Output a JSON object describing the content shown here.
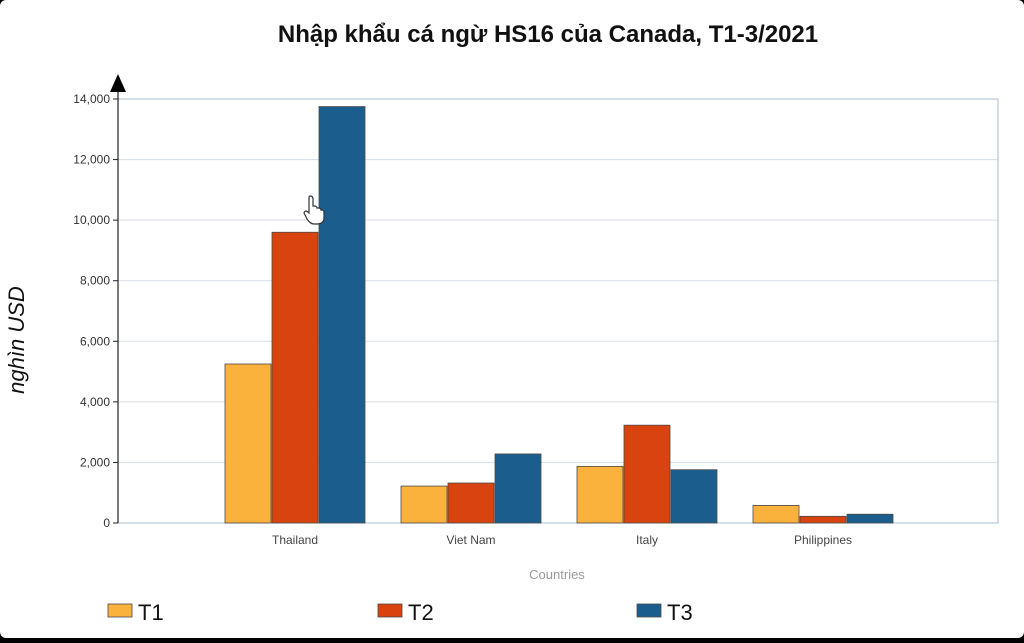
{
  "chart_data": {
    "type": "bar",
    "title": "Nhập khẩu cá ngừ HS16 của Canada, T1-3/2021",
    "ylabel": "nghìn USD",
    "xlabel": "Countries",
    "categories": [
      "Thailand",
      "Viet Nam",
      "Italy",
      "Philippines"
    ],
    "series": [
      {
        "name": "T1",
        "color": "#fbb23c",
        "values": [
          5250,
          1220,
          1870,
          580
        ]
      },
      {
        "name": "T2",
        "color": "#d9430f",
        "values": [
          9600,
          1320,
          3230,
          220
        ]
      },
      {
        "name": "T3",
        "color": "#1b5e8e",
        "values": [
          13750,
          2280,
          1760,
          290
        ]
      }
    ],
    "yticks": [
      "0",
      "2,000",
      "4,000",
      "6,000",
      "8,000",
      "10,000",
      "12,000",
      "14,000"
    ],
    "ylim": [
      0,
      14000
    ],
    "grid": true,
    "legend_position": "bottom"
  }
}
